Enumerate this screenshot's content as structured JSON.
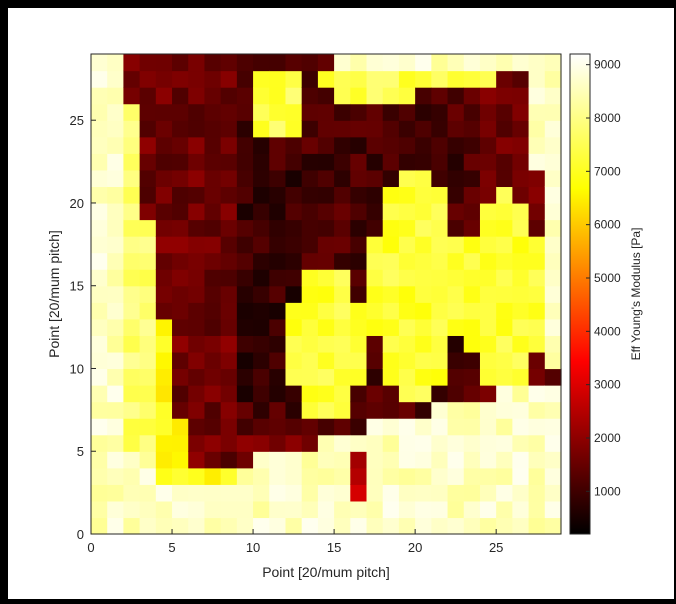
{
  "chart_data": {
    "type": "heatmap",
    "title": "",
    "xlabel": "Point [20/mum pitch]",
    "ylabel": "Point [20/mum pitch]",
    "xlim": [
      0,
      29
    ],
    "ylim": [
      0,
      29
    ],
    "xticks": [
      0,
      5,
      10,
      15,
      20,
      25
    ],
    "yticks": [
      0,
      5,
      10,
      15,
      20,
      25
    ],
    "grid_size": [
      29,
      29
    ],
    "colorbar": {
      "label": "Eff Young's Modulus [Pa]",
      "colormap": "hot",
      "min": 200,
      "max": 9200,
      "ticks": [
        1000,
        2000,
        3000,
        4000,
        5000,
        6000,
        7000,
        8000,
        9000
      ]
    },
    "regions": {
      "background_pa": 8600,
      "dark_band_pa": 1600,
      "dark_band_core_pa": 900,
      "cell_interior_dark_pa": 1100,
      "bright_stripes_pa": 7200,
      "upper_bright_blobs_pa": 7400,
      "near_bottom_spike_pa": 2500
    },
    "colors": {
      "frame": "#000000",
      "axes_line": "#262626",
      "background": "#ffffff"
    }
  }
}
